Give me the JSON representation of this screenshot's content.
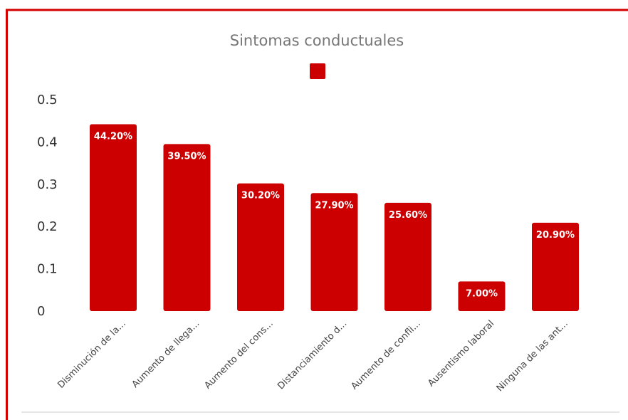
{
  "chart_data": {
    "type": "bar",
    "title": "Sintomas conductuales",
    "xlabel": "",
    "ylabel": "",
    "ylim": [
      0,
      0.5
    ],
    "yticks": [
      "0",
      "0.1",
      "0.2",
      "0.3",
      "0.4",
      "0.5"
    ],
    "ytick_values": [
      0,
      0.1,
      0.2,
      0.3,
      0.4,
      0.5
    ],
    "grid": false,
    "legend": "top-center",
    "categories": [
      "Disminución de la...",
      "Aumento de  llega...",
      "Aumento del cons...",
      "Distanciamiento d...",
      "Aumento de confli...",
      "Ausentismo laboral",
      "Ninguna de las ant..."
    ],
    "values": [
      0.442,
      0.395,
      0.302,
      0.279,
      0.256,
      0.07,
      0.209
    ],
    "data_labels": [
      "44.20%",
      "39.50%",
      "30.20%",
      "27.90%",
      "25.60%",
      "7.00%",
      "20.90%"
    ],
    "colors": {
      "bar": "#cc0000",
      "frame": "#d40000"
    }
  }
}
